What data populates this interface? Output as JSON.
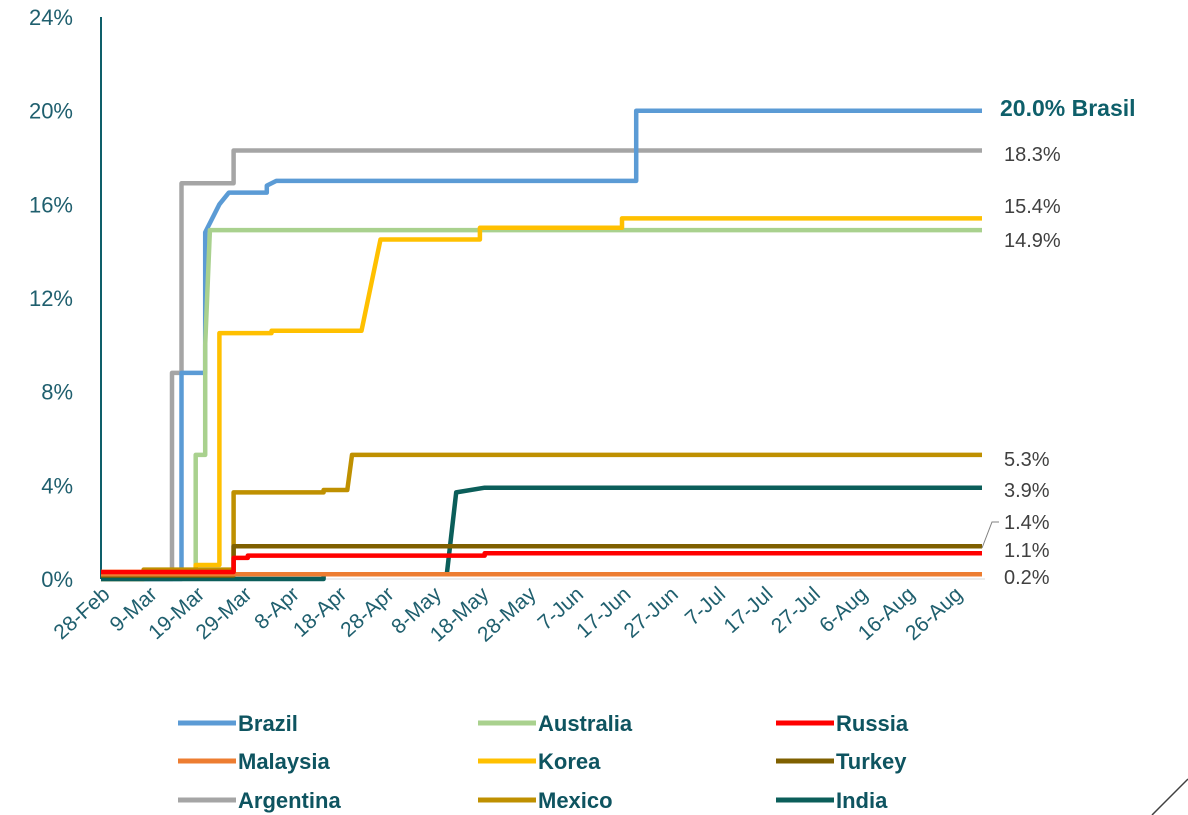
{
  "chart_data": {
    "type": "line",
    "step": true,
    "ylim": [
      0,
      24
    ],
    "y_ticks": [
      "0%",
      "4%",
      "8%",
      "12%",
      "16%",
      "20%",
      "24%"
    ],
    "y_tick_values": [
      0,
      4,
      8,
      12,
      16,
      20,
      24
    ],
    "x_tick_labels": [
      "28-Feb",
      "9-Mar",
      "19-Mar",
      "29-Mar",
      "8-Apr",
      "18-Apr",
      "28-Apr",
      "8-May",
      "18-May",
      "28-May",
      "7-Jun",
      "17-Jun",
      "27-Jun",
      "7-Jul",
      "17-Jul",
      "27-Jul",
      "6-Aug",
      "16-Aug",
      "26-Aug"
    ],
    "x_range": [
      "28-Feb",
      "1-Sep"
    ],
    "grid": false,
    "legend": "bottom",
    "series": [
      {
        "name": "Brazil",
        "color": "#5b9bd5",
        "x": [
          "28-Feb",
          "16-Mar",
          "16-Mar",
          "21-Mar",
          "21-Mar",
          "24-Mar",
          "24-Mar",
          "26-Mar",
          "26-Mar",
          "3-Apr",
          "3-Apr",
          "5-Apr",
          "5-Apr",
          "20-Jun",
          "20-Jun",
          "1-Sep"
        ],
        "values": [
          0,
          0,
          8.8,
          8.8,
          14.8,
          16.0,
          16.0,
          16.5,
          16.5,
          16.5,
          16.8,
          17.0,
          17.0,
          17.0,
          20.0,
          20.0
        ]
      },
      {
        "name": "Australia",
        "color": "#a9d18e",
        "x": [
          "28-Feb",
          "19-Mar",
          "19-Mar",
          "21-Mar",
          "21-Mar",
          "22-Mar",
          "1-Sep"
        ],
        "values": [
          0.1,
          0.1,
          5.3,
          5.3,
          10.0,
          14.9,
          14.9
        ]
      },
      {
        "name": "Russia",
        "color": "#ff0000",
        "x": [
          "28-Feb",
          "27-Mar",
          "27-Mar",
          "30-Mar",
          "30-Mar",
          "19-May",
          "19-May",
          "1-Sep"
        ],
        "values": [
          0.3,
          0.3,
          0.9,
          0.9,
          1.0,
          1.0,
          1.1,
          1.1
        ]
      },
      {
        "name": "Malaysia",
        "color": "#ed7d31",
        "x": [
          "28-Feb",
          "1-Sep"
        ],
        "values": [
          0.2,
          0.2
        ]
      },
      {
        "name": "Korea",
        "color": "#ffc000",
        "x": [
          "28-Feb",
          "19-Mar",
          "19-Mar",
          "24-Mar",
          "24-Mar",
          "4-Apr",
          "4-Apr",
          "23-Apr",
          "27-Apr",
          "18-May",
          "18-May",
          "17-Jun",
          "17-Jun",
          "1-Sep"
        ],
        "values": [
          0.3,
          0.3,
          0.6,
          0.6,
          10.5,
          10.5,
          10.6,
          10.6,
          14.5,
          14.5,
          15.0,
          15.0,
          15.4,
          15.4
        ]
      },
      {
        "name": "Turkey",
        "color": "#7f6000",
        "x": [
          "28-Feb",
          "27-Mar",
          "27-Mar",
          "1-Sep"
        ],
        "values": [
          0.15,
          0.15,
          1.4,
          1.4
        ]
      },
      {
        "name": "Argentina",
        "color": "#a5a5a5",
        "x": [
          "28-Feb",
          "14-Mar",
          "14-Mar",
          "16-Mar",
          "16-Mar",
          "27-Mar",
          "27-Mar",
          "1-Sep"
        ],
        "values": [
          0,
          0,
          8.8,
          8.8,
          16.9,
          16.9,
          18.3,
          18.3
        ]
      },
      {
        "name": "Mexico",
        "color": "#bf9000",
        "x": [
          "28-Feb",
          "8-Mar",
          "8-Mar",
          "27-Mar",
          "27-Mar",
          "15-Apr",
          "15-Apr",
          "20-Apr",
          "21-Apr",
          "1-Sep"
        ],
        "values": [
          0,
          0,
          0.4,
          0.4,
          3.7,
          3.7,
          3.8,
          3.8,
          5.3,
          5.3
        ]
      },
      {
        "name": "India",
        "color": "#0b5e5a",
        "x": [
          "28-Feb",
          "15-Apr",
          "15-Apr",
          "11-May",
          "13-May",
          "19-May",
          "1-Sep"
        ],
        "values": [
          0,
          0,
          0.2,
          0.2,
          3.7,
          3.9,
          3.9
        ]
      }
    ],
    "end_labels": [
      {
        "text": "20.0% Brasil",
        "value": 20.0,
        "emphasis": true
      },
      {
        "text": "18.3%",
        "value": 18.3
      },
      {
        "text": "15.4%",
        "value": 15.4
      },
      {
        "text": "14.9%",
        "value": 14.9
      },
      {
        "text": "5.3%",
        "value": 5.3
      },
      {
        "text": "3.9%",
        "value": 3.9
      },
      {
        "text": "1.4%",
        "value": 1.4
      },
      {
        "text": "1.1%",
        "value": 1.1
      },
      {
        "text": "0.2%",
        "value": 0.2
      }
    ]
  }
}
